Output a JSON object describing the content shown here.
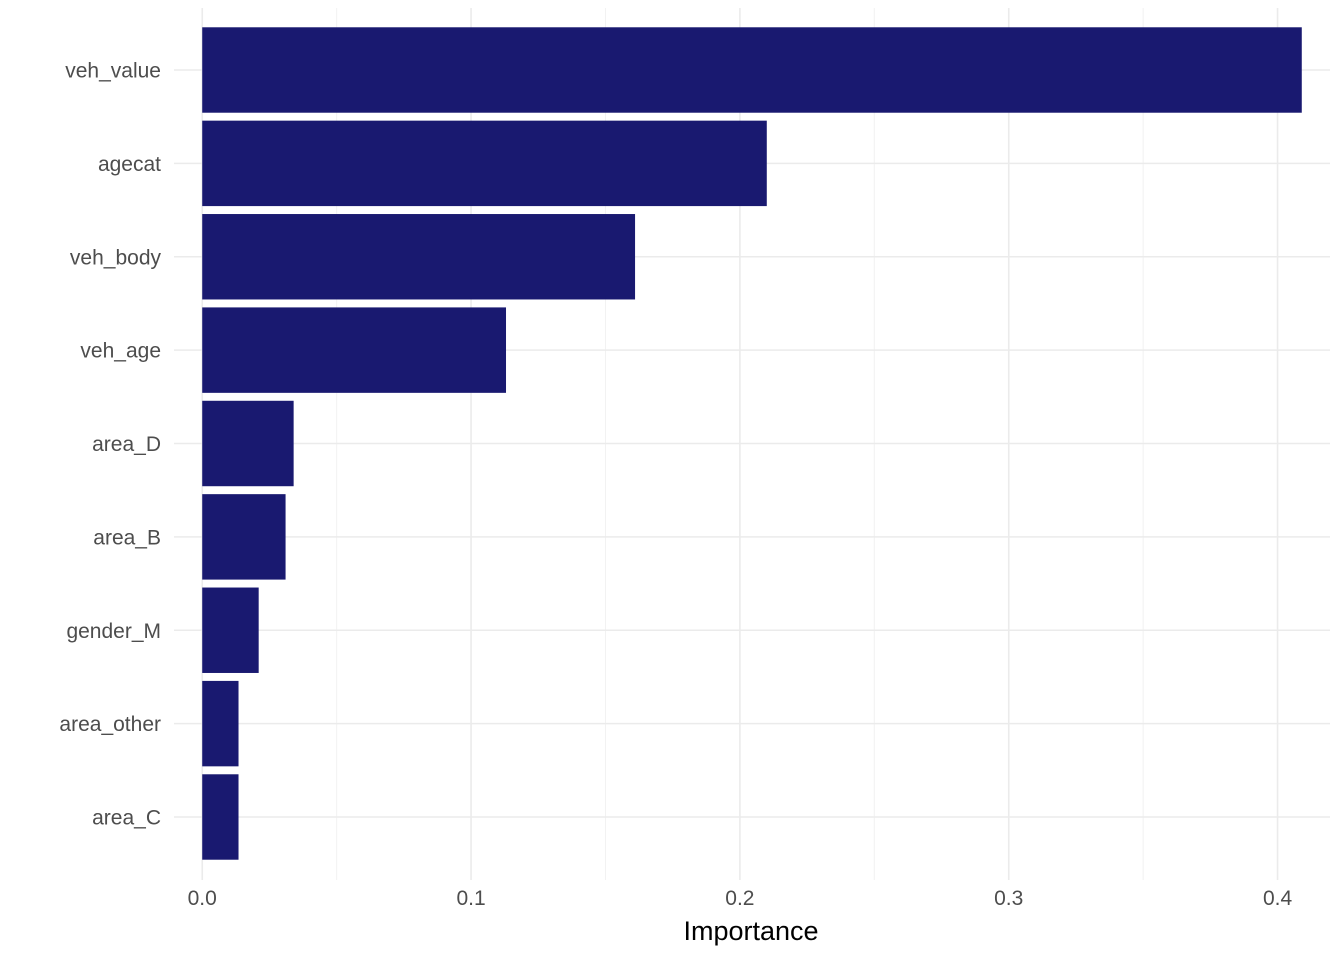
{
  "chart_data": {
    "type": "bar",
    "orientation": "horizontal",
    "categories": [
      "veh_value",
      "agecat",
      "veh_body",
      "veh_age",
      "area_D",
      "area_B",
      "gender_M",
      "area_other",
      "area_C"
    ],
    "values": [
      0.409,
      0.21,
      0.161,
      0.113,
      0.034,
      0.031,
      0.021,
      0.0135,
      0.0135
    ],
    "xlabel": "Importance",
    "ylabel": "",
    "xlim": [
      -0.0105,
      0.4195
    ],
    "x_ticks": [
      0.0,
      0.1,
      0.2,
      0.3,
      0.4
    ],
    "x_tick_labels": [
      "0.0",
      "0.1",
      "0.2",
      "0.3",
      "0.4"
    ],
    "grid": true,
    "legend": "none",
    "bar_color": "#191970"
  }
}
